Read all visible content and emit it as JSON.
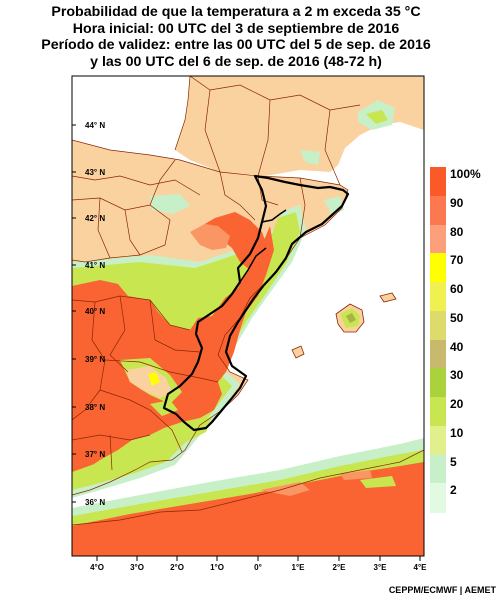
{
  "title": {
    "line1": "Probabilidad de que la temperatura a 2 m exceda 35 °C",
    "line2": "Hora inicial: 00 UTC del 3 de septiembre de 2016",
    "line3": "Período de validez: entre las 00 UTC del 5 de sep. de 2016",
    "line4": "y las 00 UTC del 6 de sep. de 2016 (48-72 h)"
  },
  "map": {
    "lat_labels": [
      "44° N",
      "43° N",
      "42° N",
      "41° N",
      "40° N",
      "39° N",
      "38° N",
      "37° N",
      "36° N"
    ],
    "lon_labels": [
      "4°O",
      "3°O",
      "2°O",
      "1°O",
      "0°",
      "1°E",
      "2°E",
      "3°E",
      "4°E"
    ],
    "colors": {
      "land": "#fad2a0",
      "sea": "#ffffff",
      "p90": "#fa6432",
      "p80": "#fa9664",
      "p70": "#ffff00",
      "p40": "#aab14a",
      "p20": "#c8e650",
      "p5": "#c8f0c8"
    }
  },
  "legend": {
    "items": [
      {
        "label": "100%",
        "color": "#fa5a28"
      },
      {
        "label": "90",
        "color": "#fb7850"
      },
      {
        "label": "80",
        "color": "#fba07a"
      },
      {
        "label": "70",
        "color": "#ffff00"
      },
      {
        "label": "60",
        "color": "#f0f050"
      },
      {
        "label": "50",
        "color": "#dddb6c"
      },
      {
        "label": "40",
        "color": "#c8b96e"
      },
      {
        "label": "30",
        "color": "#aad23c"
      },
      {
        "label": "20",
        "color": "#c8e650"
      },
      {
        "label": "10",
        "color": "#e1f08c"
      },
      {
        "label": "5",
        "color": "#c8f0c8"
      },
      {
        "label": "2",
        "color": "#e1fae1"
      }
    ]
  },
  "credit": "CEPPM/ECMWF | AEMET"
}
